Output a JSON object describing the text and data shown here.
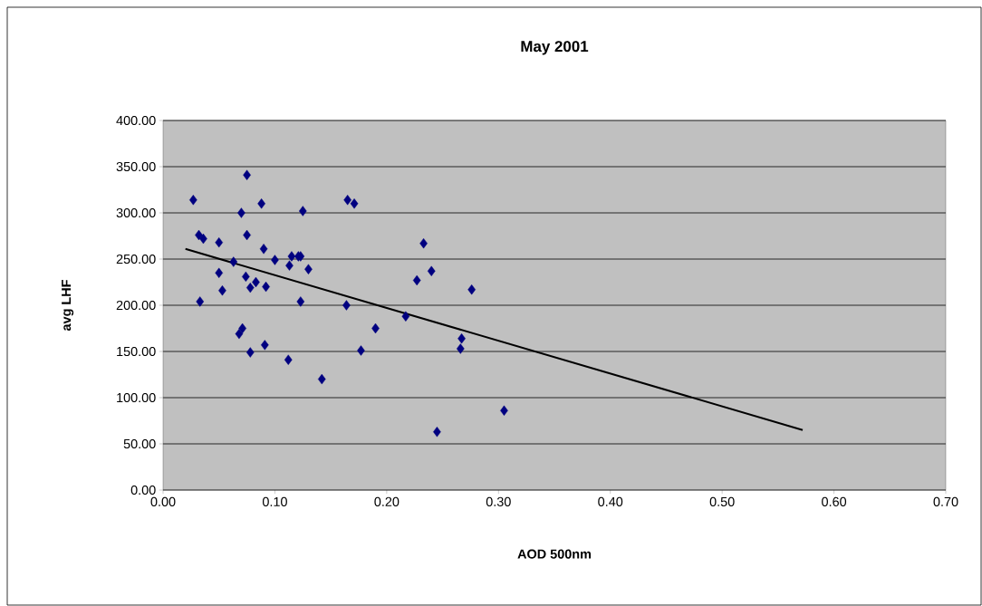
{
  "chart_data": {
    "type": "scatter",
    "title": "May 2001",
    "xlabel": "AOD 500nm",
    "ylabel": "avg LHF",
    "grid": "y",
    "xlim": [
      0,
      0.7
    ],
    "ylim": [
      0,
      400
    ],
    "xticks": [
      {
        "value": 0,
        "label": "0.00"
      },
      {
        "value": 0.1,
        "label": "0.10"
      },
      {
        "value": 0.2,
        "label": "0.20"
      },
      {
        "value": 0.3,
        "label": "0.30"
      },
      {
        "value": 0.4,
        "label": "0.40"
      },
      {
        "value": 0.5,
        "label": "0.50"
      },
      {
        "value": 0.6,
        "label": "0.60"
      },
      {
        "value": 0.7,
        "label": "0.70"
      }
    ],
    "yticks": [
      {
        "value": 0,
        "label": "0.00"
      },
      {
        "value": 50,
        "label": "50.00"
      },
      {
        "value": 100,
        "label": "100.00"
      },
      {
        "value": 150,
        "label": "150.00"
      },
      {
        "value": 200,
        "label": "200.00"
      },
      {
        "value": 250,
        "label": "250.00"
      },
      {
        "value": 300,
        "label": "300.00"
      },
      {
        "value": 350,
        "label": "350.00"
      },
      {
        "value": 400,
        "label": "400.00"
      }
    ],
    "series": [
      {
        "marker": "diamond",
        "color": "#000080",
        "x": [
          0.027,
          0.032,
          0.036,
          0.033,
          0.05,
          0.05,
          0.053,
          0.063,
          0.068,
          0.071,
          0.07,
          0.075,
          0.075,
          0.074,
          0.078,
          0.083,
          0.078,
          0.088,
          0.09,
          0.092,
          0.091,
          0.1,
          0.112,
          0.113,
          0.115,
          0.121,
          0.123,
          0.125,
          0.123,
          0.13,
          0.142,
          0.165,
          0.171,
          0.164,
          0.177,
          0.19,
          0.217,
          0.227,
          0.233,
          0.24,
          0.245,
          0.267,
          0.266,
          0.276,
          0.305
        ],
        "values": [
          314,
          276,
          272,
          204,
          268,
          235,
          216,
          247,
          169,
          175,
          300,
          341,
          276,
          231,
          219,
          225,
          149,
          310,
          261,
          220,
          157,
          249,
          141,
          243,
          253,
          253,
          253,
          302,
          204,
          239,
          120,
          314,
          310,
          200,
          151,
          175,
          188,
          227,
          267,
          237,
          63,
          164,
          153,
          217,
          86
        ]
      },
      {
        "type": "line",
        "color": "#000000",
        "x": [
          0.02,
          0.572
        ],
        "values": [
          261,
          65
        ]
      }
    ]
  }
}
